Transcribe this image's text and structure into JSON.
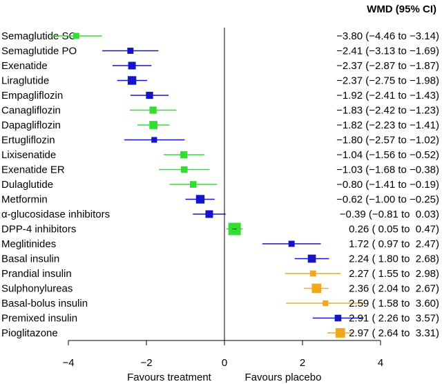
{
  "chart_data": {
    "type": "forest",
    "header": "WMD (95% CI)",
    "xlim": [
      -5,
      4
    ],
    "xticks": [
      -4,
      -2,
      0,
      2,
      4
    ],
    "xtick_labels": [
      "−4",
      "−2",
      "0",
      "2",
      "4"
    ],
    "favours_left": "Favours treatment",
    "favours_right": "Favours placebo",
    "colors": {
      "green": "#33dd33",
      "blue": "#1414c8",
      "orange": "#f2a81c"
    },
    "rows": [
      {
        "label": "Semaglutide SC",
        "est": -3.8,
        "lo": -4.46,
        "hi": -3.14,
        "color": "green",
        "weight": 0.35,
        "ci_text": "−3.80 (−4.46 to −3.14)"
      },
      {
        "label": "Semaglutide PO",
        "est": -2.41,
        "lo": -3.13,
        "hi": -1.69,
        "color": "blue",
        "weight": 0.35,
        "ci_text": "−2.41 (−3.13 to −1.69)"
      },
      {
        "label": "Exenatide",
        "est": -2.37,
        "lo": -2.87,
        "hi": -1.87,
        "color": "blue",
        "weight": 0.5,
        "ci_text": "−2.37 (−2.87 to −1.87)"
      },
      {
        "label": "Liraglutide",
        "est": -2.37,
        "lo": -2.75,
        "hi": -1.98,
        "color": "blue",
        "weight": 0.6,
        "ci_text": "−2.37 (−2.75 to −1.98)"
      },
      {
        "label": "Empagliflozin",
        "est": -1.92,
        "lo": -2.41,
        "hi": -1.43,
        "color": "blue",
        "weight": 0.45,
        "ci_text": "−1.92 (−2.41 to −1.43)"
      },
      {
        "label": "Canagliflozin",
        "est": -1.83,
        "lo": -2.42,
        "hi": -1.23,
        "color": "green",
        "weight": 0.45,
        "ci_text": "−1.83 (−2.42 to −1.23)"
      },
      {
        "label": "Dapagliflozin",
        "est": -1.82,
        "lo": -2.23,
        "hi": -1.41,
        "color": "green",
        "weight": 0.55,
        "ci_text": "−1.82 (−2.23 to −1.41)"
      },
      {
        "label": "Ertugliflozin",
        "est": -1.8,
        "lo": -2.57,
        "hi": -1.02,
        "color": "blue",
        "weight": 0.3,
        "ci_text": "−1.80 (−2.57 to −1.02)"
      },
      {
        "label": "Lixisenatide",
        "est": -1.04,
        "lo": -1.56,
        "hi": -0.52,
        "color": "green",
        "weight": 0.45,
        "ci_text": "−1.04 (−1.56 to −0.52)"
      },
      {
        "label": "Exenatide ER",
        "est": -1.03,
        "lo": -1.68,
        "hi": -0.38,
        "color": "green",
        "weight": 0.4,
        "ci_text": "−1.03 (−1.68 to −0.38)"
      },
      {
        "label": "Dulaglutide",
        "est": -0.8,
        "lo": -1.41,
        "hi": -0.19,
        "color": "green",
        "weight": 0.4,
        "ci_text": "−0.80 (−1.41 to −0.19)"
      },
      {
        "label": "Metformin",
        "est": -0.62,
        "lo": -1.0,
        "hi": -0.25,
        "color": "blue",
        "weight": 0.6,
        "ci_text": "−0.62 (−1.00 to −0.25)"
      },
      {
        "label": "α-glucosidase inhibitors",
        "est": -0.39,
        "lo": -0.81,
        "hi": 0.03,
        "color": "blue",
        "weight": 0.5,
        "ci_text": "−0.39 (−0.81 to  0.03)"
      },
      {
        "label": "DPP-4 inhibitors",
        "est": 0.26,
        "lo": 0.05,
        "hi": 0.47,
        "color": "green",
        "weight": 1.0,
        "ci_text": "0.26 ( 0.05 to  0.47)"
      },
      {
        "label": "Meglitinides",
        "est": 1.72,
        "lo": 0.97,
        "hi": 2.47,
        "color": "blue",
        "weight": 0.35,
        "ci_text": "1.72 ( 0.97 to  2.47)"
      },
      {
        "label": "Basal insulin",
        "est": 2.24,
        "lo": 1.8,
        "hi": 2.68,
        "color": "blue",
        "weight": 0.55,
        "ci_text": "2.24 ( 1.80 to  2.68)"
      },
      {
        "label": "Prandial insulin",
        "est": 2.27,
        "lo": 1.55,
        "hi": 2.98,
        "color": "orange",
        "weight": 0.35,
        "ci_text": "2.27 ( 1.55 to  2.98)"
      },
      {
        "label": "Sulphonylureas",
        "est": 2.36,
        "lo": 2.04,
        "hi": 2.67,
        "color": "orange",
        "weight": 0.7,
        "ci_text": "2.36 ( 2.04 to  2.67)"
      },
      {
        "label": "Basal-bolus insulin",
        "est": 2.59,
        "lo": 1.58,
        "hi": 3.6,
        "color": "orange",
        "weight": 0.3,
        "ci_text": "2.59 ( 1.58 to  3.60)"
      },
      {
        "label": "Premixed insulin",
        "est": 2.91,
        "lo": 2.26,
        "hi": 3.57,
        "color": "blue",
        "weight": 0.4,
        "ci_text": "2.91 ( 2.26 to  3.57)"
      },
      {
        "label": "Pioglitazone",
        "est": 2.97,
        "lo": 2.64,
        "hi": 3.31,
        "color": "orange",
        "weight": 0.7,
        "ci_text": "2.97 ( 2.64 to  3.31)"
      }
    ]
  }
}
